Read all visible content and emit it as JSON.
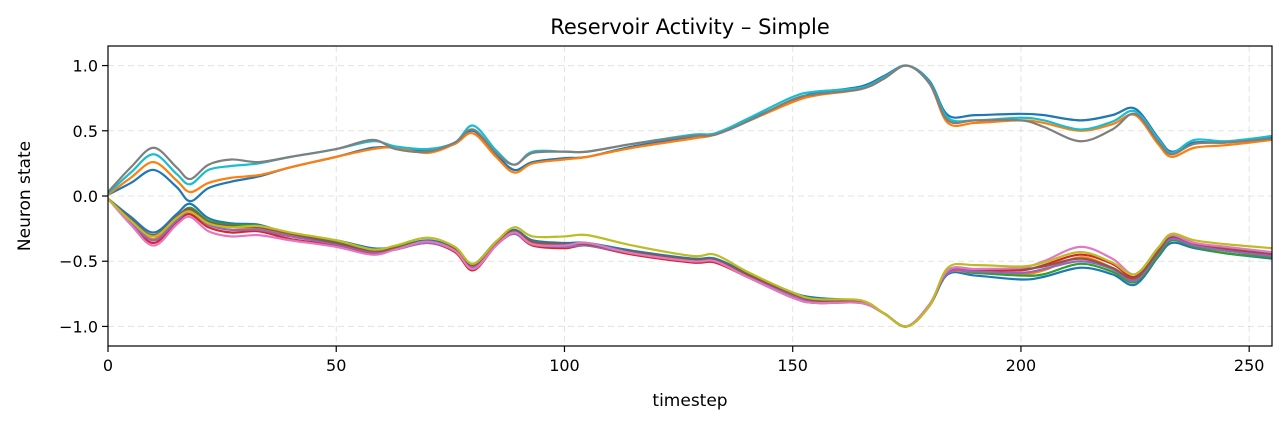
{
  "chart_data": {
    "type": "line",
    "title": "Reservoir Activity – Simple",
    "xlabel": "timestep",
    "ylabel": "Neuron state",
    "xlim": [
      0,
      255
    ],
    "ylim": [
      -1.15,
      1.15
    ],
    "xticks": [
      0,
      50,
      100,
      150,
      200,
      250
    ],
    "xtick_labels": [
      "0",
      "50",
      "100",
      "150",
      "200",
      "250"
    ],
    "yticks": [
      -1.0,
      -0.5,
      0.0,
      0.5,
      1.0
    ],
    "ytick_labels": [
      "−1.0",
      "−0.5",
      "0.0",
      "0.5",
      "1.0"
    ],
    "grid": true,
    "legend": "none",
    "x": [
      0,
      5,
      10,
      15,
      18,
      22,
      27,
      33,
      40,
      50,
      58,
      63,
      70,
      76,
      80,
      85,
      89,
      93,
      100,
      105,
      115,
      128,
      133,
      140,
      150,
      155,
      165,
      170,
      175,
      180,
      184,
      190,
      200,
      205,
      213,
      220,
      225,
      230,
      233,
      238,
      245,
      255
    ],
    "series": [
      {
        "color": "#1f77b4",
        "values": [
          0.01,
          0.1,
          0.2,
          0.07,
          -0.04,
          0.06,
          0.11,
          0.15,
          0.22,
          0.3,
          0.37,
          0.37,
          0.35,
          0.4,
          0.5,
          0.32,
          0.2,
          0.26,
          0.29,
          0.3,
          0.38,
          0.45,
          0.48,
          0.58,
          0.73,
          0.79,
          0.84,
          0.92,
          1.0,
          0.88,
          0.62,
          0.62,
          0.63,
          0.62,
          0.58,
          0.62,
          0.67,
          0.45,
          0.34,
          0.41,
          0.41,
          0.45
        ]
      },
      {
        "color": "#ff7f0e",
        "values": [
          0.01,
          0.14,
          0.26,
          0.12,
          0.03,
          0.1,
          0.14,
          0.16,
          0.22,
          0.3,
          0.36,
          0.37,
          0.33,
          0.4,
          0.48,
          0.3,
          0.18,
          0.25,
          0.28,
          0.3,
          0.37,
          0.44,
          0.47,
          0.57,
          0.72,
          0.77,
          0.82,
          0.9,
          1.0,
          0.86,
          0.56,
          0.56,
          0.58,
          0.56,
          0.5,
          0.55,
          0.62,
          0.4,
          0.3,
          0.37,
          0.39,
          0.43
        ]
      },
      {
        "color": "#17becf",
        "values": [
          0.02,
          0.18,
          0.32,
          0.17,
          0.09,
          0.2,
          0.23,
          0.25,
          0.3,
          0.36,
          0.42,
          0.38,
          0.36,
          0.41,
          0.54,
          0.35,
          0.24,
          0.34,
          0.34,
          0.34,
          0.4,
          0.47,
          0.48,
          0.59,
          0.76,
          0.8,
          0.83,
          0.91,
          1.0,
          0.87,
          0.6,
          0.58,
          0.6,
          0.58,
          0.51,
          0.57,
          0.65,
          0.44,
          0.33,
          0.43,
          0.42,
          0.46
        ]
      },
      {
        "color": "#7f7f7f",
        "values": [
          0.03,
          0.22,
          0.37,
          0.22,
          0.13,
          0.24,
          0.28,
          0.26,
          0.3,
          0.36,
          0.43,
          0.36,
          0.34,
          0.41,
          0.51,
          0.33,
          0.24,
          0.33,
          0.34,
          0.34,
          0.4,
          0.46,
          0.47,
          0.57,
          0.74,
          0.78,
          0.82,
          0.9,
          1.0,
          0.86,
          0.58,
          0.58,
          0.58,
          0.53,
          0.42,
          0.51,
          0.63,
          0.42,
          0.32,
          0.4,
          0.41,
          0.44
        ]
      },
      {
        "color": "#1f77b4",
        "values": [
          -0.02,
          -0.16,
          -0.28,
          -0.14,
          -0.06,
          -0.17,
          -0.21,
          -0.22,
          -0.29,
          -0.34,
          -0.4,
          -0.39,
          -0.34,
          -0.4,
          -0.52,
          -0.35,
          -0.26,
          -0.34,
          -0.36,
          -0.36,
          -0.42,
          -0.48,
          -0.48,
          -0.59,
          -0.74,
          -0.78,
          -0.81,
          -0.9,
          -1.0,
          -0.84,
          -0.6,
          -0.61,
          -0.64,
          -0.62,
          -0.55,
          -0.6,
          -0.68,
          -0.47,
          -0.36,
          -0.4,
          -0.44,
          -0.48
        ]
      },
      {
        "color": "#ff7f0e",
        "values": [
          -0.02,
          -0.2,
          -0.33,
          -0.18,
          -0.11,
          -0.21,
          -0.24,
          -0.25,
          -0.3,
          -0.36,
          -0.42,
          -0.4,
          -0.35,
          -0.42,
          -0.54,
          -0.37,
          -0.28,
          -0.36,
          -0.38,
          -0.37,
          -0.44,
          -0.5,
          -0.5,
          -0.61,
          -0.76,
          -0.8,
          -0.82,
          -0.9,
          -1.0,
          -0.83,
          -0.59,
          -0.59,
          -0.6,
          -0.57,
          -0.47,
          -0.55,
          -0.64,
          -0.44,
          -0.33,
          -0.38,
          -0.42,
          -0.45
        ]
      },
      {
        "color": "#2ca02c",
        "values": [
          -0.02,
          -0.19,
          -0.31,
          -0.17,
          -0.09,
          -0.19,
          -0.22,
          -0.23,
          -0.29,
          -0.35,
          -0.41,
          -0.39,
          -0.35,
          -0.41,
          -0.53,
          -0.36,
          -0.27,
          -0.35,
          -0.37,
          -0.37,
          -0.43,
          -0.49,
          -0.49,
          -0.6,
          -0.75,
          -0.79,
          -0.81,
          -0.9,
          -1.0,
          -0.84,
          -0.58,
          -0.59,
          -0.61,
          -0.6,
          -0.52,
          -0.58,
          -0.66,
          -0.46,
          -0.34,
          -0.39,
          -0.44,
          -0.47
        ]
      },
      {
        "color": "#d62728",
        "values": [
          -0.02,
          -0.21,
          -0.36,
          -0.2,
          -0.14,
          -0.24,
          -0.28,
          -0.27,
          -0.33,
          -0.38,
          -0.44,
          -0.41,
          -0.36,
          -0.43,
          -0.57,
          -0.38,
          -0.29,
          -0.38,
          -0.4,
          -0.38,
          -0.45,
          -0.51,
          -0.51,
          -0.62,
          -0.78,
          -0.82,
          -0.82,
          -0.9,
          -1.0,
          -0.83,
          -0.58,
          -0.57,
          -0.57,
          -0.53,
          -0.45,
          -0.52,
          -0.62,
          -0.42,
          -0.32,
          -0.37,
          -0.41,
          -0.45
        ]
      },
      {
        "color": "#9467bd",
        "values": [
          -0.02,
          -0.2,
          -0.34,
          -0.19,
          -0.12,
          -0.22,
          -0.26,
          -0.26,
          -0.31,
          -0.37,
          -0.43,
          -0.41,
          -0.36,
          -0.42,
          -0.55,
          -0.37,
          -0.29,
          -0.37,
          -0.39,
          -0.38,
          -0.44,
          -0.5,
          -0.5,
          -0.61,
          -0.77,
          -0.81,
          -0.82,
          -0.9,
          -1.0,
          -0.84,
          -0.59,
          -0.58,
          -0.59,
          -0.56,
          -0.5,
          -0.56,
          -0.65,
          -0.44,
          -0.33,
          -0.38,
          -0.42,
          -0.46
        ]
      },
      {
        "color": "#8c564b",
        "values": [
          -0.02,
          -0.18,
          -0.3,
          -0.16,
          -0.1,
          -0.2,
          -0.23,
          -0.24,
          -0.29,
          -0.36,
          -0.42,
          -0.4,
          -0.35,
          -0.41,
          -0.53,
          -0.36,
          -0.27,
          -0.35,
          -0.37,
          -0.37,
          -0.43,
          -0.49,
          -0.49,
          -0.6,
          -0.75,
          -0.8,
          -0.81,
          -0.9,
          -1.0,
          -0.84,
          -0.57,
          -0.56,
          -0.56,
          -0.54,
          -0.48,
          -0.55,
          -0.63,
          -0.43,
          -0.31,
          -0.36,
          -0.4,
          -0.44
        ]
      },
      {
        "color": "#e377c2",
        "values": [
          -0.02,
          -0.22,
          -0.38,
          -0.22,
          -0.16,
          -0.27,
          -0.31,
          -0.3,
          -0.34,
          -0.39,
          -0.45,
          -0.41,
          -0.35,
          -0.42,
          -0.56,
          -0.38,
          -0.28,
          -0.37,
          -0.38,
          -0.36,
          -0.44,
          -0.5,
          -0.5,
          -0.62,
          -0.78,
          -0.82,
          -0.82,
          -0.9,
          -1.0,
          -0.83,
          -0.57,
          -0.56,
          -0.55,
          -0.5,
          -0.39,
          -0.48,
          -0.6,
          -0.4,
          -0.3,
          -0.36,
          -0.39,
          -0.43
        ]
      },
      {
        "color": "#bcbd22",
        "values": [
          -0.02,
          -0.19,
          -0.31,
          -0.17,
          -0.12,
          -0.21,
          -0.24,
          -0.23,
          -0.28,
          -0.34,
          -0.41,
          -0.38,
          -0.32,
          -0.39,
          -0.52,
          -0.35,
          -0.24,
          -0.31,
          -0.31,
          -0.3,
          -0.38,
          -0.46,
          -0.45,
          -0.58,
          -0.74,
          -0.79,
          -0.8,
          -0.9,
          -1.0,
          -0.84,
          -0.55,
          -0.53,
          -0.54,
          -0.51,
          -0.43,
          -0.51,
          -0.6,
          -0.4,
          -0.29,
          -0.34,
          -0.37,
          -0.4
        ]
      }
    ]
  }
}
